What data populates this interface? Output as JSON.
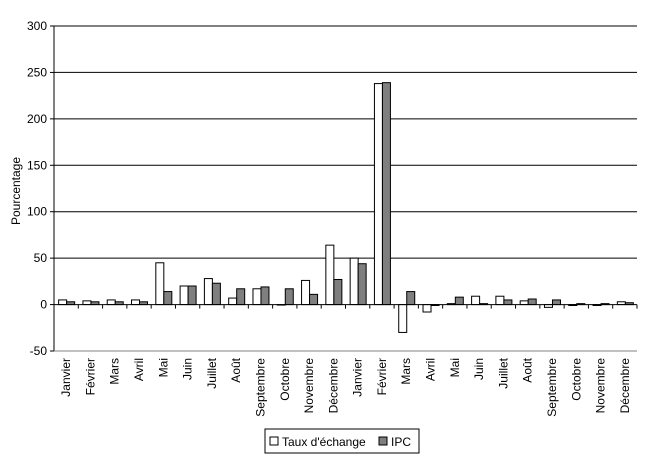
{
  "chart_data": {
    "type": "bar",
    "ylabel": "Pourcentage",
    "xlabel": "",
    "title": "",
    "ylim": [
      -50,
      300
    ],
    "yticks": [
      -50,
      0,
      50,
      100,
      150,
      200,
      250,
      300
    ],
    "grid": "horizontal",
    "legend": "bottom-center",
    "categories": [
      "Janvier",
      "Février",
      "Mars",
      "Avril",
      "Mai",
      "Juin",
      "Juillet",
      "Août",
      "Septembre",
      "Octobre",
      "Novembre",
      "Décembre",
      "Janvier",
      "Février",
      "Mars",
      "Avril",
      "Mai",
      "Juin",
      "Juillet",
      "Août",
      "Septembre",
      "Octobre",
      "Novembre",
      "Décembre"
    ],
    "series": [
      {
        "name": "Taux d'échange",
        "color": "#ffffff",
        "values": [
          5,
          4,
          5,
          5,
          45,
          20,
          28,
          7,
          17,
          0,
          26,
          64,
          50,
          238,
          -30,
          -8,
          1,
          9,
          9,
          4,
          -3,
          -1,
          -1,
          3
        ]
      },
      {
        "name": "IPC",
        "color": "#7f7f7f",
        "values": [
          3,
          3,
          3,
          3,
          14,
          20,
          23,
          17,
          19,
          17,
          11,
          27,
          44,
          239,
          14,
          -1,
          8,
          1,
          5,
          6,
          5,
          1,
          1,
          2
        ]
      }
    ]
  }
}
